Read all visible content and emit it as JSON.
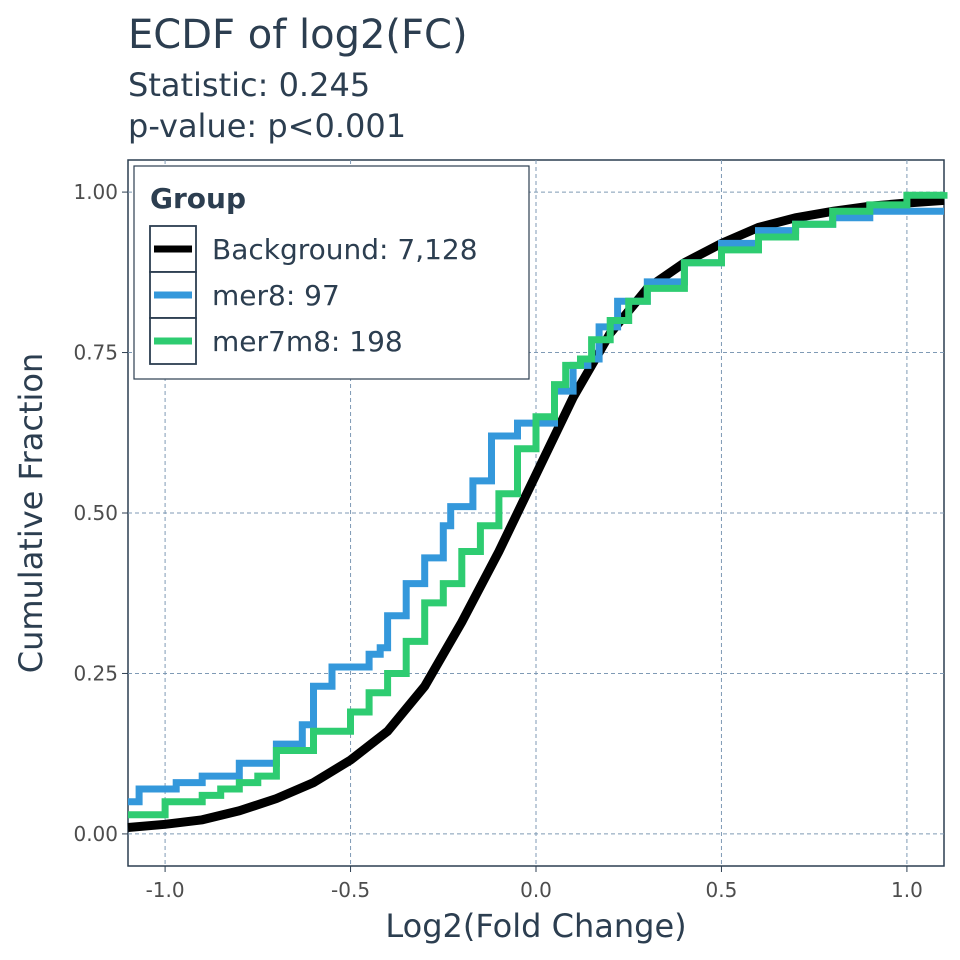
{
  "chart_data": {
    "type": "line",
    "title": "ECDF of log2(FC)",
    "subtitle_lines": [
      "Statistic: 0.245",
      "p-value: p<0.001"
    ],
    "xlabel": "Log2(Fold Change)",
    "ylabel": "Cumulative Fraction",
    "xlim": [
      -1.1,
      1.1
    ],
    "ylim": [
      -0.05,
      1.05
    ],
    "x_ticks": [
      -1.0,
      -0.5,
      0.0,
      0.5,
      1.0
    ],
    "x_tick_labels": [
      "-1.0",
      "-0.5",
      "0.0",
      "0.5",
      "1.0"
    ],
    "y_ticks": [
      0.0,
      0.25,
      0.5,
      0.75,
      1.0
    ],
    "y_tick_labels": [
      "0.00",
      "0.25",
      "0.50",
      "0.75",
      "1.00"
    ],
    "grid": true,
    "legend": {
      "title": "Group",
      "position": "top-left"
    },
    "series": [
      {
        "name": "Background: 7,128",
        "color": "#000000",
        "points": [
          [
            -1.1,
            0.01
          ],
          [
            -1.0,
            0.015
          ],
          [
            -0.9,
            0.022
          ],
          [
            -0.8,
            0.036
          ],
          [
            -0.7,
            0.055
          ],
          [
            -0.6,
            0.08
          ],
          [
            -0.5,
            0.115
          ],
          [
            -0.4,
            0.16
          ],
          [
            -0.3,
            0.23
          ],
          [
            -0.2,
            0.33
          ],
          [
            -0.1,
            0.44
          ],
          [
            0.0,
            0.56
          ],
          [
            0.1,
            0.68
          ],
          [
            0.2,
            0.78
          ],
          [
            0.3,
            0.85
          ],
          [
            0.4,
            0.89
          ],
          [
            0.5,
            0.92
          ],
          [
            0.6,
            0.945
          ],
          [
            0.7,
            0.96
          ],
          [
            0.8,
            0.97
          ],
          [
            0.9,
            0.978
          ],
          [
            1.0,
            0.983
          ],
          [
            1.1,
            0.987
          ]
        ]
      },
      {
        "name": "mer8: 97",
        "color": "#3498db",
        "points": [
          [
            -1.1,
            0.05
          ],
          [
            -1.07,
            0.07
          ],
          [
            -1.0,
            0.07
          ],
          [
            -0.97,
            0.08
          ],
          [
            -0.9,
            0.09
          ],
          [
            -0.8,
            0.11
          ],
          [
            -0.7,
            0.14
          ],
          [
            -0.63,
            0.17
          ],
          [
            -0.6,
            0.23
          ],
          [
            -0.55,
            0.26
          ],
          [
            -0.5,
            0.26
          ],
          [
            -0.45,
            0.28
          ],
          [
            -0.42,
            0.29
          ],
          [
            -0.4,
            0.34
          ],
          [
            -0.35,
            0.39
          ],
          [
            -0.3,
            0.43
          ],
          [
            -0.25,
            0.48
          ],
          [
            -0.23,
            0.51
          ],
          [
            -0.2,
            0.51
          ],
          [
            -0.17,
            0.55
          ],
          [
            -0.12,
            0.62
          ],
          [
            -0.06,
            0.62
          ],
          [
            -0.05,
            0.64
          ],
          [
            0.0,
            0.64
          ],
          [
            0.05,
            0.69
          ],
          [
            0.1,
            0.73
          ],
          [
            0.14,
            0.74
          ],
          [
            0.17,
            0.79
          ],
          [
            0.2,
            0.79
          ],
          [
            0.22,
            0.83
          ],
          [
            0.3,
            0.86
          ],
          [
            0.4,
            0.89
          ],
          [
            0.5,
            0.92
          ],
          [
            0.6,
            0.94
          ],
          [
            0.7,
            0.95
          ],
          [
            0.8,
            0.96
          ],
          [
            0.9,
            0.97
          ],
          [
            1.1,
            0.97
          ]
        ]
      },
      {
        "name": "mer7m8: 198",
        "color": "#2ecc71",
        "points": [
          [
            -1.1,
            0.03
          ],
          [
            -1.0,
            0.05
          ],
          [
            -0.9,
            0.06
          ],
          [
            -0.85,
            0.07
          ],
          [
            -0.8,
            0.08
          ],
          [
            -0.75,
            0.09
          ],
          [
            -0.7,
            0.13
          ],
          [
            -0.6,
            0.16
          ],
          [
            -0.5,
            0.19
          ],
          [
            -0.45,
            0.22
          ],
          [
            -0.4,
            0.25
          ],
          [
            -0.35,
            0.3
          ],
          [
            -0.3,
            0.36
          ],
          [
            -0.25,
            0.39
          ],
          [
            -0.2,
            0.44
          ],
          [
            -0.15,
            0.48
          ],
          [
            -0.1,
            0.53
          ],
          [
            -0.05,
            0.6
          ],
          [
            0.0,
            0.65
          ],
          [
            0.05,
            0.7
          ],
          [
            0.08,
            0.73
          ],
          [
            0.12,
            0.74
          ],
          [
            0.15,
            0.77
          ],
          [
            0.2,
            0.8
          ],
          [
            0.25,
            0.83
          ],
          [
            0.3,
            0.85
          ],
          [
            0.4,
            0.89
          ],
          [
            0.5,
            0.91
          ],
          [
            0.6,
            0.93
          ],
          [
            0.7,
            0.95
          ],
          [
            0.8,
            0.97
          ],
          [
            0.9,
            0.98
          ],
          [
            1.0,
            0.995
          ],
          [
            1.1,
            1.0
          ]
        ]
      }
    ]
  }
}
